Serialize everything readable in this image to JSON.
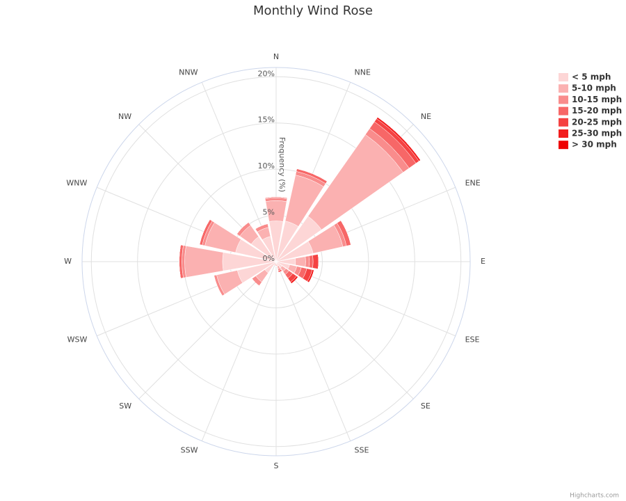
{
  "chart_data": {
    "type": "windrose",
    "title": "Monthly Wind Rose",
    "y_axis_title": "Frequency (%)",
    "credits": "Highcharts.com",
    "categories": [
      "N",
      "NNE",
      "NE",
      "ENE",
      "E",
      "ESE",
      "SE",
      "SSE",
      "S",
      "SSW",
      "SW",
      "WSW",
      "W",
      "WNW",
      "NW",
      "NNW"
    ],
    "ylim": [
      0,
      21
    ],
    "yticks": [
      {
        "value": 0,
        "label": "0%"
      },
      {
        "value": 5,
        "label": "5%"
      },
      {
        "value": 10,
        "label": "10%"
      },
      {
        "value": 15,
        "label": "15%"
      },
      {
        "value": 20,
        "label": "20%"
      }
    ],
    "grid": true,
    "legend_position": "top-right",
    "series": [
      {
        "name": "< 5 mph",
        "color": "#fdd6d6",
        "values": [
          4.4,
          4.5,
          6.0,
          4.1,
          2.1,
          1.5,
          0.8,
          0.5,
          0.3,
          0.2,
          1.5,
          4.3,
          5.8,
          4.5,
          3.3,
          2.8
        ]
      },
      {
        "name": "5-10 mph",
        "color": "#fbb1b1",
        "values": [
          2.2,
          5.1,
          10.8,
          3.3,
          1.1,
          0.8,
          0.5,
          0.3,
          0.2,
          0.2,
          1.2,
          2.3,
          4.1,
          3.4,
          1.5,
          1.0
        ]
      },
      {
        "name": "10-15 mph",
        "color": "#f98c8c",
        "values": [
          0.3,
          0.4,
          0.8,
          0.4,
          0.4,
          0.5,
          0.4,
          0.2,
          0,
          0,
          0.5,
          0.3,
          0.3,
          0.3,
          0.4,
          0.4
        ]
      },
      {
        "name": "15-20 mph",
        "color": "#f76767",
        "values": [
          0.1,
          0.3,
          0.9,
          0.5,
          0.4,
          0.6,
          0.5,
          0.2,
          0,
          0,
          0,
          0,
          0.3,
          0.3,
          0,
          0
        ]
      },
      {
        "name": "20-25 mph",
        "color": "#f54242",
        "values": [
          0,
          0,
          0.4,
          0,
          0.6,
          0.6,
          0.5,
          0,
          0,
          0,
          0,
          0,
          0,
          0,
          0,
          0
        ]
      },
      {
        "name": "25-30 mph",
        "color": "#f21d1d",
        "values": [
          0,
          0,
          0.2,
          0,
          0,
          0.2,
          0.2,
          0,
          0,
          0,
          0,
          0,
          0,
          0,
          0,
          0
        ]
      },
      {
        "name": "> 30 mph",
        "color": "#ee0000",
        "values": [
          0,
          0,
          0,
          0,
          0,
          0,
          0,
          0,
          0,
          0,
          0,
          0,
          0,
          0,
          0,
          0
        ]
      }
    ]
  }
}
